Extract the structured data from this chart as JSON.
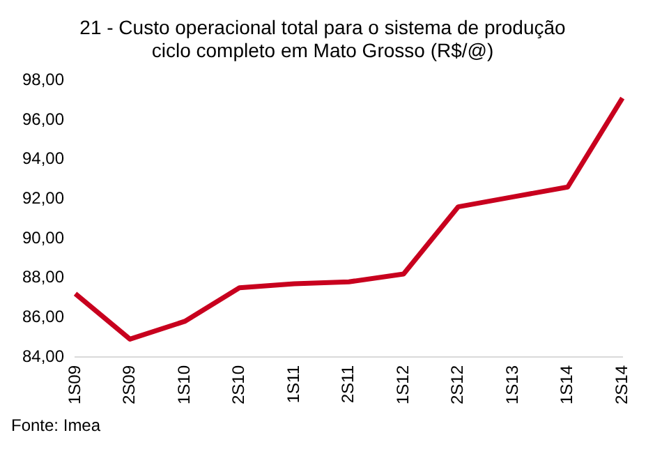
{
  "chart_data": {
    "type": "line",
    "title": "21 - Custo operacional total para o sistema de produção\nciclo completo em Mato Grosso (R$/@)",
    "categories": [
      "1S09",
      "2S09",
      "1S10",
      "2S10",
      "1S11",
      "2S11",
      "1S12",
      "2S12",
      "1S13",
      "1S14",
      "2S14"
    ],
    "series": [
      {
        "color": "#c8001e",
        "values": [
          87.2,
          84.9,
          85.8,
          87.5,
          87.7,
          87.8,
          88.2,
          91.6,
          92.1,
          92.6,
          97.1
        ]
      }
    ],
    "ylim": [
      84,
      98
    ],
    "yticks": [
      {
        "value": 84,
        "label": "84,00"
      },
      {
        "value": 86,
        "label": "86,00"
      },
      {
        "value": 88,
        "label": "88,00"
      },
      {
        "value": 90,
        "label": "90,00"
      },
      {
        "value": 92,
        "label": "92,00"
      },
      {
        "value": 94,
        "label": "94,00"
      },
      {
        "value": 96,
        "label": "96,00"
      },
      {
        "value": 98,
        "label": "98,00"
      }
    ],
    "grid": false,
    "legend": false,
    "marker": "none",
    "line_style": "solid",
    "annotations": [
      "Fonte: Imea"
    ]
  }
}
